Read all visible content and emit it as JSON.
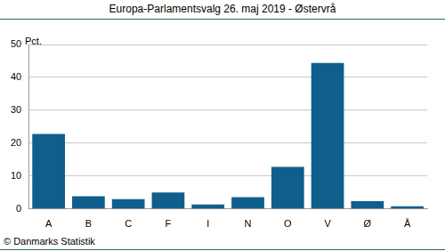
{
  "chart_data": {
    "type": "bar",
    "title": "Europa-Parlamentsvalg 26. maj 2019 - Østervrå",
    "y_label": "Pct.",
    "source": "© Danmarks Statistik",
    "categories": [
      "A",
      "B",
      "C",
      "F",
      "I",
      "N",
      "O",
      "V",
      "Ø",
      "Å"
    ],
    "values": [
      22.8,
      3.9,
      3.0,
      5.0,
      1.4,
      3.6,
      12.8,
      44.4,
      2.4,
      0.8
    ],
    "color": "#0f5e8c",
    "ylim": [
      0,
      50
    ],
    "yticks": [
      0,
      10,
      20,
      30,
      40,
      50
    ],
    "grid": true
  }
}
